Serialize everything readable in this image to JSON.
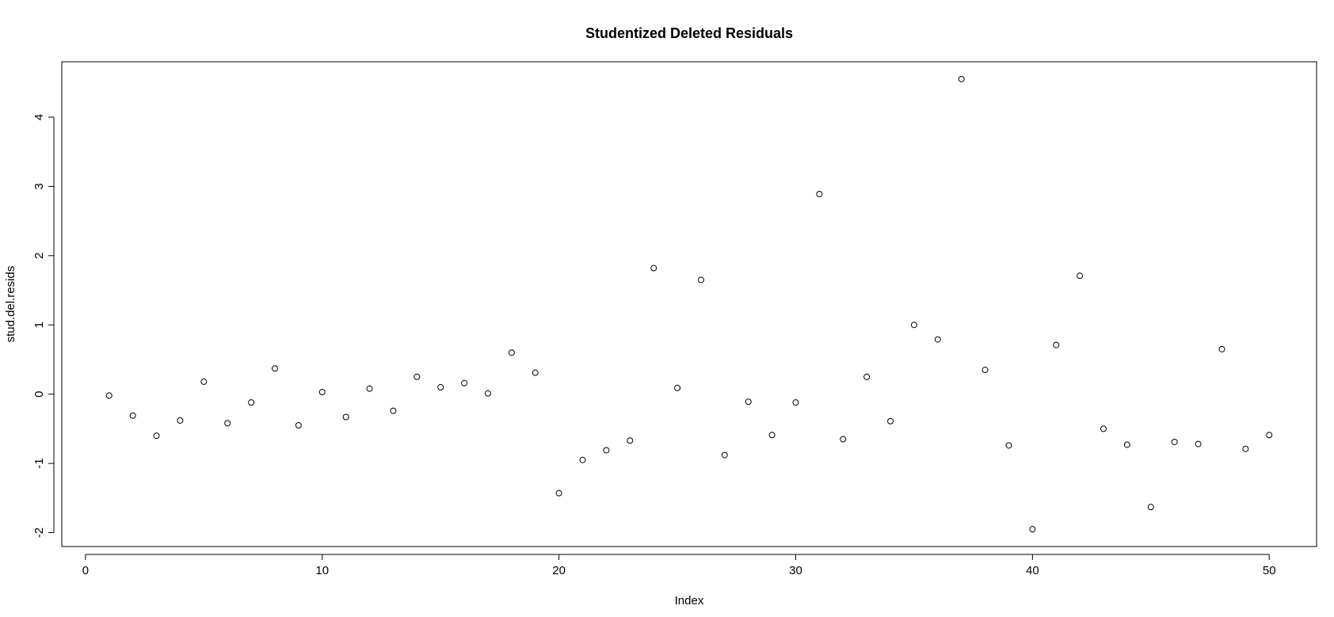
{
  "chart_data": {
    "type": "scatter",
    "title": "Studentized Deleted Residuals",
    "xlabel": "Index",
    "ylabel": "stud.del.resids",
    "xlim": [
      -1,
      52
    ],
    "ylim": [
      -2.2,
      4.8
    ],
    "x_ticks": [
      0,
      10,
      20,
      30,
      40,
      50
    ],
    "x_tick_labels": [
      "0",
      "10",
      "20",
      "30",
      "40",
      "50"
    ],
    "y_ticks": [
      -2,
      -1,
      0,
      1,
      2,
      3,
      4
    ],
    "y_tick_labels": [
      "-2",
      "-1",
      "0",
      "1",
      "2",
      "3",
      "4"
    ],
    "grid": false,
    "marker": "open-circle",
    "x": [
      1,
      2,
      3,
      4,
      5,
      6,
      7,
      8,
      9,
      10,
      11,
      12,
      13,
      14,
      15,
      16,
      17,
      18,
      19,
      20,
      21,
      22,
      23,
      24,
      25,
      26,
      27,
      28,
      29,
      30,
      31,
      32,
      33,
      34,
      35,
      36,
      37,
      38,
      39,
      40,
      41,
      42,
      43,
      44,
      45,
      46,
      47,
      48,
      49,
      50
    ],
    "y": [
      -0.02,
      -0.31,
      -0.6,
      -0.38,
      0.18,
      -0.42,
      -0.12,
      0.37,
      -0.45,
      0.03,
      -0.33,
      0.08,
      -0.24,
      0.25,
      0.1,
      0.16,
      0.01,
      0.6,
      0.31,
      -1.43,
      -0.95,
      -0.81,
      -0.67,
      1.82,
      0.09,
      1.65,
      -0.88,
      -0.11,
      -0.59,
      -0.12,
      2.89,
      -0.65,
      0.25,
      -0.39,
      1.0,
      0.79,
      4.55,
      0.35,
      -0.74,
      -1.95,
      0.71,
      1.71,
      -0.5,
      -0.73,
      -1.63,
      -0.69,
      -0.72,
      0.65,
      -0.79,
      -0.59
    ]
  }
}
